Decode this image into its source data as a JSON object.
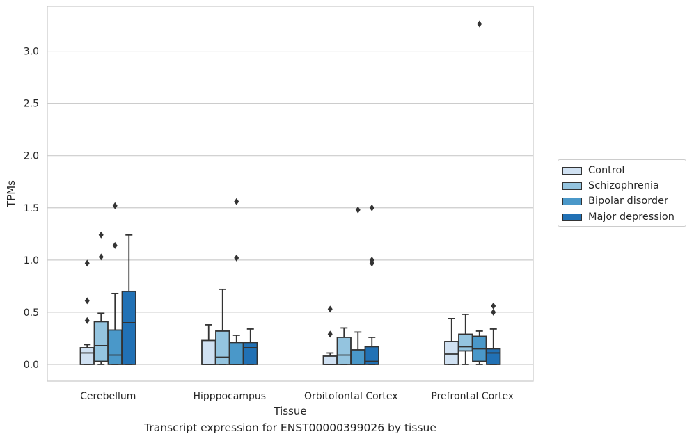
{
  "caption": "Transcript expression for ENST00000399026 by tissue",
  "chart_data": {
    "type": "boxplot",
    "xlabel": "Tissue",
    "ylabel": "TPMs",
    "ylim": [
      -0.16,
      3.43
    ],
    "yticks": [
      "0.0",
      "0.5",
      "1.0",
      "1.5",
      "2.0",
      "2.5",
      "3.0"
    ],
    "ytick_values": [
      0.0,
      0.5,
      1.0,
      1.5,
      2.0,
      2.5,
      3.0
    ],
    "grid": "horizontal",
    "legend_position": "right",
    "categories": [
      "Cerebellum",
      "Hipppocampus",
      "Orbitofontal Cortex",
      "Prefrontal Cortex"
    ],
    "series": [
      {
        "name": "Control",
        "color": "#d0e1f2",
        "boxes": [
          {
            "whislo": 0.0,
            "q1": 0.0,
            "med": 0.11,
            "q3": 0.16,
            "whishi": 0.19,
            "fliers": [
              0.42,
              0.61,
              0.97
            ]
          },
          {
            "whislo": 0.0,
            "q1": 0.0,
            "med": 0.0,
            "q3": 0.23,
            "whishi": 0.38,
            "fliers": []
          },
          {
            "whislo": 0.0,
            "q1": 0.0,
            "med": 0.0,
            "q3": 0.08,
            "whishi": 0.11,
            "fliers": [
              0.29,
              0.53
            ]
          },
          {
            "whislo": 0.0,
            "q1": 0.0,
            "med": 0.1,
            "q3": 0.22,
            "whishi": 0.44,
            "fliers": []
          }
        ]
      },
      {
        "name": "Schizophrenia",
        "color": "#94c4df",
        "boxes": [
          {
            "whislo": 0.0,
            "q1": 0.03,
            "med": 0.18,
            "q3": 0.41,
            "whishi": 0.49,
            "fliers": [
              1.03,
              1.24
            ]
          },
          {
            "whislo": 0.0,
            "q1": 0.0,
            "med": 0.07,
            "q3": 0.32,
            "whishi": 0.72,
            "fliers": []
          },
          {
            "whislo": 0.0,
            "q1": 0.0,
            "med": 0.09,
            "q3": 0.26,
            "whishi": 0.35,
            "fliers": []
          },
          {
            "whislo": 0.0,
            "q1": 0.13,
            "med": 0.17,
            "q3": 0.29,
            "whishi": 0.48,
            "fliers": []
          }
        ]
      },
      {
        "name": "Bipolar disorder",
        "color": "#4a98c9",
        "boxes": [
          {
            "whislo": 0.0,
            "q1": 0.0,
            "med": 0.09,
            "q3": 0.33,
            "whishi": 0.68,
            "fliers": [
              1.14,
              1.52
            ]
          },
          {
            "whislo": 0.0,
            "q1": 0.0,
            "med": 0.0,
            "q3": 0.21,
            "whishi": 0.28,
            "fliers": [
              1.02,
              1.56
            ]
          },
          {
            "whislo": 0.0,
            "q1": 0.0,
            "med": 0.0,
            "q3": 0.14,
            "whishi": 0.31,
            "fliers": [
              1.48
            ]
          },
          {
            "whislo": 0.0,
            "q1": 0.03,
            "med": 0.15,
            "q3": 0.27,
            "whishi": 0.32,
            "fliers": [
              3.26
            ]
          }
        ]
      },
      {
        "name": "Major depression",
        "color": "#2171b5",
        "boxes": [
          {
            "whislo": 0.0,
            "q1": 0.0,
            "med": 0.4,
            "q3": 0.7,
            "whishi": 1.24,
            "fliers": []
          },
          {
            "whislo": 0.0,
            "q1": 0.0,
            "med": 0.16,
            "q3": 0.21,
            "whishi": 0.34,
            "fliers": []
          },
          {
            "whislo": 0.0,
            "q1": 0.0,
            "med": 0.03,
            "q3": 0.17,
            "whishi": 0.26,
            "fliers": [
              0.97,
              1.0,
              1.5
            ]
          },
          {
            "whislo": 0.0,
            "q1": 0.0,
            "med": 0.11,
            "q3": 0.15,
            "whishi": 0.34,
            "fliers": [
              0.5,
              0.56
            ]
          }
        ]
      }
    ]
  }
}
